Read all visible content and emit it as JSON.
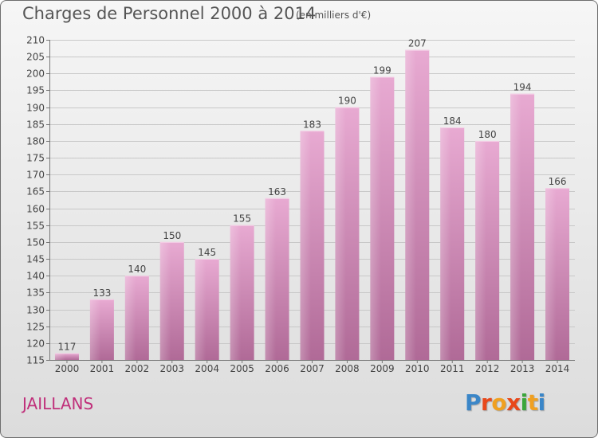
{
  "header": {
    "title": "Charges de Personnel 2000 à 2014",
    "subtitle": "(en milliers d'€)"
  },
  "footer": {
    "commune": "JAILLANS",
    "logo": {
      "text": "Proxiti",
      "colors": [
        "#3a86c8",
        "#e8481a",
        "#f0a020",
        "#e8481a",
        "#3aa63a",
        "#f0a020",
        "#3a86c8"
      ]
    }
  },
  "colors": {
    "bar_light": "#e6a6cf",
    "bar_dark": "#b06a97",
    "commune": "#c0307b"
  },
  "chart_data": {
    "type": "bar",
    "title": "Charges de Personnel 2000 à 2014",
    "subtitle": "(en milliers d'€)",
    "xlabel": "",
    "ylabel": "",
    "categories": [
      "2000",
      "2001",
      "2002",
      "2003",
      "2004",
      "2005",
      "2006",
      "2007",
      "2008",
      "2009",
      "2010",
      "2011",
      "2012",
      "2013",
      "2014"
    ],
    "values": [
      117,
      133,
      140,
      150,
      145,
      155,
      163,
      183,
      190,
      199,
      207,
      184,
      180,
      194,
      166
    ],
    "ylim": [
      115,
      210
    ],
    "yticks": [
      115,
      120,
      125,
      130,
      135,
      140,
      145,
      150,
      155,
      160,
      165,
      170,
      175,
      180,
      185,
      190,
      195,
      200,
      205,
      210
    ],
    "grid": true
  }
}
